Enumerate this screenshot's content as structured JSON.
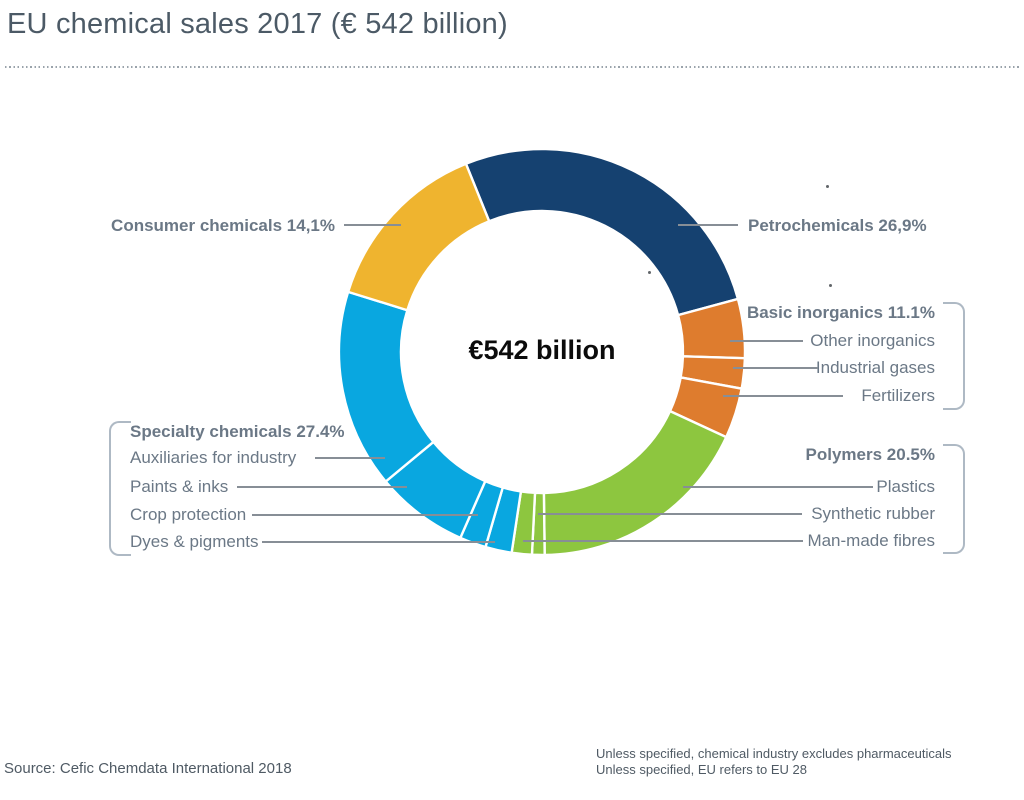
{
  "title": "EU chemical sales 2017 (€ 542 billion)",
  "chart_data": {
    "type": "pie",
    "subtype": "donut",
    "title": "EU chemical sales 2017 (€ 542 billion)",
    "center_label": "€542 billion",
    "total": "€ 542 billion",
    "units": "percent share of EU chemical sales 2017",
    "rotation_deg": -22,
    "direction": "clockwise",
    "legend_position": "callout-labels",
    "segments": [
      {
        "name": "Petrochemicals",
        "label": "Petrochemicals 26,9%",
        "value": 26.9,
        "color": "#154170"
      },
      {
        "name": "Basic inorganics",
        "label": "Basic inorganics 11.1%",
        "value": 11.1,
        "color": "#DE7C2E",
        "subs": [
          {
            "name": "Other inorganics",
            "value": 4.7
          },
          {
            "name": "Industrial gases",
            "value": 2.4
          },
          {
            "name": "Fertilizers",
            "value": 4.0
          }
        ]
      },
      {
        "name": "Polymers",
        "label": "Polymers 20.5%",
        "value": 20.5,
        "color": "#8DC63F",
        "subs": [
          {
            "name": "Plastics",
            "value": 17.9
          },
          {
            "name": "Synthetic rubber",
            "value": 1.0
          },
          {
            "name": "Man-made fibres",
            "value": 1.6
          }
        ]
      },
      {
        "name": "Specialty chemicals",
        "label": "Specialty chemicals 27.4%",
        "value": 27.4,
        "color": "#09A7E0",
        "subs": [
          {
            "name": "Dyes & pigments",
            "value": 2.1
          },
          {
            "name": "Crop protection",
            "value": 2.1
          },
          {
            "name": "Paints & inks",
            "value": 7.4
          },
          {
            "name": "Auxiliaries for industry",
            "value": 15.8
          }
        ]
      },
      {
        "name": "Consumer chemicals",
        "label": "Consumer chemicals 14,1%",
        "value": 14.1,
        "color": "#EFB42F"
      }
    ]
  },
  "footer": {
    "source": "Source: Cefic Chemdata International 2018",
    "note_line1": "Unless specified, chemical industry excludes pharmaceuticals",
    "note_line2": "Unless specified, EU refers to EU 28"
  }
}
